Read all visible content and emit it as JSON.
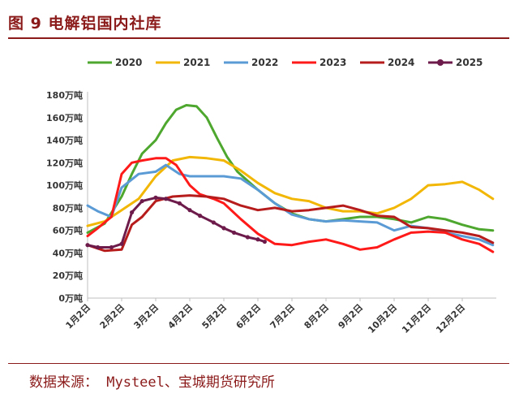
{
  "header": {
    "title": "图 9    电解铝国内社库"
  },
  "footer": {
    "source": "数据来源： Mysteel、宝城期货研究所"
  },
  "chart_data": {
    "type": "line",
    "title": "",
    "xlabel": "",
    "ylabel": "",
    "y_unit": "万吨",
    "ylim": [
      0,
      180
    ],
    "y_ticks": [
      "180万吨",
      "160万吨",
      "140万吨",
      "120万吨",
      "100万吨",
      "80万吨",
      "60万吨",
      "40万吨",
      "20万吨",
      "0万吨"
    ],
    "x_ticks": [
      "1月2日",
      "2月2日",
      "3月2日",
      "4月2日",
      "5月2日",
      "6月2日",
      "7月2日",
      "8月2日",
      "9月2日",
      "10月2日",
      "11月2日",
      "12月2日"
    ],
    "legend_position": "top",
    "x_unit": "month (1 = Jan 2, 12 = Dec 2)",
    "series": [
      {
        "name": "2020",
        "color": "#4ea72e",
        "x": [
          1,
          1.5,
          2,
          2.3,
          2.6,
          3,
          3.3,
          3.6,
          3.9,
          4.2,
          4.5,
          4.8,
          5.1,
          5.4,
          5.7,
          6,
          6.5,
          7,
          7.5,
          8,
          8.5,
          9,
          9.5,
          10,
          10.5,
          11,
          11.5,
          12,
          12.5,
          12.9
        ],
        "y": [
          58,
          66,
          90,
          110,
          128,
          140,
          155,
          167,
          171,
          170,
          160,
          142,
          125,
          112,
          104,
          96,
          84,
          75,
          70,
          68,
          70,
          72,
          72,
          70,
          67,
          72,
          70,
          65,
          61,
          60
        ]
      },
      {
        "name": "2021",
        "color": "#f2b705",
        "x": [
          1,
          1.5,
          2,
          2.5,
          3,
          3.5,
          4,
          4.5,
          5,
          5.5,
          6,
          6.5,
          7,
          7.5,
          8,
          8.5,
          9,
          9.5,
          10,
          10.5,
          11,
          11.5,
          12,
          12.5,
          12.9
        ],
        "y": [
          64,
          68,
          78,
          88,
          108,
          122,
          125,
          124,
          122,
          113,
          102,
          93,
          88,
          86,
          80,
          77,
          77,
          75,
          80,
          88,
          100,
          101,
          103,
          96,
          88
        ]
      },
      {
        "name": "2022",
        "color": "#5b9bd5",
        "x": [
          1,
          1.3,
          1.7,
          2,
          2.5,
          3,
          3.3,
          3.7,
          4,
          4.5,
          5,
          5.5,
          6,
          6.5,
          7,
          7.5,
          8,
          8.5,
          9,
          9.5,
          10,
          10.5,
          11,
          11.5,
          12,
          12.5,
          12.9
        ],
        "y": [
          82,
          77,
          72,
          98,
          110,
          112,
          118,
          110,
          108,
          108,
          108,
          106,
          96,
          84,
          74,
          70,
          68,
          69,
          68,
          67,
          60,
          64,
          62,
          58,
          55,
          52,
          47
        ]
      },
      {
        "name": "2023",
        "color": "#ff1a1a",
        "x": [
          1,
          1.3,
          1.7,
          2,
          2.3,
          2.6,
          3,
          3.3,
          3.6,
          4,
          4.3,
          4.7,
          5,
          5.5,
          6,
          6.5,
          7,
          7.5,
          8,
          8.5,
          9,
          9.5,
          10,
          10.5,
          11,
          11.5,
          12,
          12.5,
          12.9
        ],
        "y": [
          55,
          62,
          72,
          110,
          120,
          122,
          124,
          124,
          118,
          100,
          92,
          88,
          84,
          70,
          57,
          48,
          47,
          50,
          52,
          48,
          43,
          45,
          52,
          58,
          59,
          58,
          52,
          48,
          41
        ]
      },
      {
        "name": "2024",
        "color": "#b71c1c",
        "x": [
          1,
          1.5,
          2,
          2.3,
          2.6,
          3,
          3.5,
          4,
          4.5,
          5,
          5.5,
          6,
          6.5,
          7,
          7.5,
          8,
          8.5,
          9,
          9.5,
          10,
          10.5,
          11,
          11.5,
          12,
          12.5,
          12.9
        ],
        "y": [
          47,
          42,
          43,
          65,
          72,
          86,
          90,
          91,
          90,
          88,
          82,
          78,
          80,
          77,
          78,
          80,
          82,
          78,
          73,
          72,
          63,
          62,
          60,
          58,
          55,
          49
        ]
      },
      {
        "name": "2025",
        "color": "#6d1b4a",
        "x": [
          1,
          1.3,
          1.7,
          2,
          2.3,
          2.6,
          3,
          3.3,
          3.7,
          4,
          4.3,
          4.7,
          5,
          5.3,
          5.7,
          6,
          6.2
        ],
        "y": [
          47,
          45,
          45,
          48,
          76,
          86,
          89,
          88,
          84,
          78,
          73,
          67,
          62,
          58,
          54,
          52,
          50
        ]
      }
    ]
  }
}
